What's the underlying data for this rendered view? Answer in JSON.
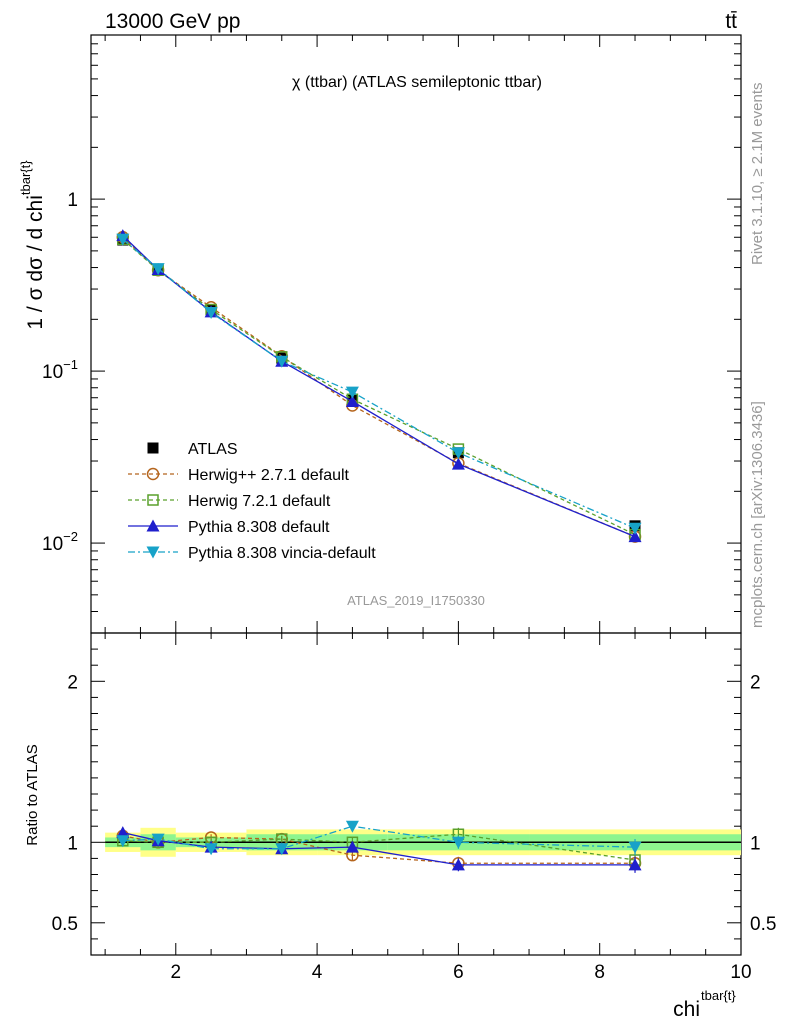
{
  "header": {
    "left": "13000 GeV pp",
    "right": "tt̄"
  },
  "side_labels": {
    "rivet": "Rivet 3.1.10, ≥ 2.1M events",
    "mcplots": "mcplots.cern.ch [arXiv:1306.3436]"
  },
  "chart_data": [
    {
      "type": "line",
      "title": "χ (ttbar) (ATLAS semileptonic ttbar)",
      "watermark": "ATLAS_2019_I1750330",
      "ylabel": "1 / σ dσ / d chi",
      "ylabel_sup": "tbar{t}",
      "yscale": "log",
      "ylim": [
        0.003,
        9
      ],
      "xlim": [
        0.8,
        10
      ],
      "y_ticks": [
        {
          "v": 1,
          "base": "1",
          "exp": ""
        },
        {
          "v": 0.1,
          "base": "10",
          "exp": "−1"
        },
        {
          "v": 0.01,
          "base": "10",
          "exp": "−2"
        }
      ],
      "legend_position": "center-left",
      "series": [
        {
          "name": "ATLAS",
          "color": "#000000",
          "marker": "square-filled",
          "dash": "none",
          "x": [
            1.25,
            1.75,
            2.5,
            3.5,
            4.5,
            6,
            8.5
          ],
          "y": [
            0.578,
            0.386,
            0.228,
            0.119,
            0.0686,
            0.0335,
            0.0126
          ]
        },
        {
          "name": "Herwig++ 2.7.1 default",
          "color": "#b5651d",
          "marker": "circle-open",
          "dash": "4,3",
          "x": [
            1.25,
            1.75,
            2.5,
            3.5,
            4.5,
            6,
            8.5
          ],
          "y": [
            0.601,
            0.386,
            0.235,
            0.122,
            0.0631,
            0.0291,
            0.0109
          ]
        },
        {
          "name": "Herwig 7.2.1 default",
          "color": "#5aa02c",
          "marker": "square-open",
          "dash": "4,3",
          "x": [
            1.25,
            1.75,
            2.5,
            3.5,
            4.5,
            6,
            8.5
          ],
          "y": [
            0.584,
            0.386,
            0.228,
            0.121,
            0.0686,
            0.0352,
            0.0112
          ]
        },
        {
          "name": "Pythia 8.308 default",
          "color": "#1f1fcc",
          "marker": "triangle-up",
          "dash": "none",
          "x": [
            1.25,
            1.75,
            2.5,
            3.5,
            4.5,
            6,
            8.5
          ],
          "y": [
            0.613,
            0.39,
            0.221,
            0.114,
            0.0666,
            0.0288,
            0.0109
          ]
        },
        {
          "name": "Pythia 8.308 vincia-default",
          "color": "#17a2c8",
          "marker": "triangle-down",
          "dash": "7,3,2,3",
          "x": [
            1.25,
            1.75,
            2.5,
            3.5,
            4.5,
            6,
            8.5
          ],
          "y": [
            0.584,
            0.394,
            0.219,
            0.114,
            0.0755,
            0.0335,
            0.0122
          ]
        }
      ]
    },
    {
      "type": "line",
      "ylabel": "Ratio to ATLAS",
      "xlabel": "chi",
      "xlabel_sup": "tbar{t}",
      "ylim": [
        0.3,
        2.3
      ],
      "xlim": [
        0.8,
        10
      ],
      "x_ticks": [
        2,
        4,
        6,
        8,
        10
      ],
      "y_ticks": [
        0.5,
        1,
        2
      ],
      "bins": [
        [
          1,
          1.5
        ],
        [
          1.5,
          2
        ],
        [
          2,
          3
        ],
        [
          3,
          4
        ],
        [
          4,
          5
        ],
        [
          5,
          7
        ],
        [
          7,
          10
        ]
      ],
      "band_yellow": [
        [
          0.94,
          1.06
        ],
        [
          0.91,
          1.09
        ],
        [
          0.94,
          1.06
        ],
        [
          0.92,
          1.08
        ],
        [
          0.92,
          1.08
        ],
        [
          0.92,
          1.08
        ],
        [
          0.92,
          1.08
        ]
      ],
      "band_green": [
        [
          0.97,
          1.03
        ],
        [
          0.95,
          1.05
        ],
        [
          0.97,
          1.03
        ],
        [
          0.95,
          1.05
        ],
        [
          0.95,
          1.05
        ],
        [
          0.95,
          1.05
        ],
        [
          0.95,
          1.05
        ]
      ],
      "series": [
        {
          "name": "Herwig++ 2.7.1 default",
          "color": "#b5651d",
          "marker": "circle-open",
          "dash": "4,3",
          "x": [
            1.25,
            1.75,
            2.5,
            3.5,
            4.5,
            6,
            8.5
          ],
          "y": [
            1.04,
            1.0,
            1.03,
            1.02,
            0.92,
            0.87,
            0.87
          ],
          "err": [
            0.03,
            0.03,
            0.02,
            0.02,
            0.03,
            0.04,
            0.05
          ]
        },
        {
          "name": "Herwig 7.2.1 default",
          "color": "#5aa02c",
          "marker": "square-open",
          "dash": "4,3",
          "x": [
            1.25,
            1.75,
            2.5,
            3.5,
            4.5,
            6,
            8.5
          ],
          "y": [
            1.01,
            1.0,
            1.0,
            1.02,
            1.0,
            1.05,
            0.89
          ],
          "err": [
            0.03,
            0.03,
            0.02,
            0.02,
            0.03,
            0.04,
            0.05
          ]
        },
        {
          "name": "Pythia 8.308 default",
          "color": "#1f1fcc",
          "marker": "triangle-up",
          "dash": "none",
          "x": [
            1.25,
            1.75,
            2.5,
            3.5,
            4.5,
            6,
            8.5
          ],
          "y": [
            1.06,
            1.01,
            0.97,
            0.96,
            0.97,
            0.86,
            0.86
          ],
          "err": [
            0.03,
            0.03,
            0.02,
            0.02,
            0.03,
            0.04,
            0.05
          ]
        },
        {
          "name": "Pythia 8.308 vincia-default",
          "color": "#17a2c8",
          "marker": "triangle-down",
          "dash": "7,3,2,3",
          "x": [
            1.25,
            1.75,
            2.5,
            3.5,
            4.5,
            6,
            8.5
          ],
          "y": [
            1.01,
            1.02,
            0.96,
            0.96,
            1.1,
            1.0,
            0.97
          ],
          "err": [
            0.03,
            0.03,
            0.02,
            0.02,
            0.03,
            0.04,
            0.05
          ]
        }
      ]
    }
  ]
}
